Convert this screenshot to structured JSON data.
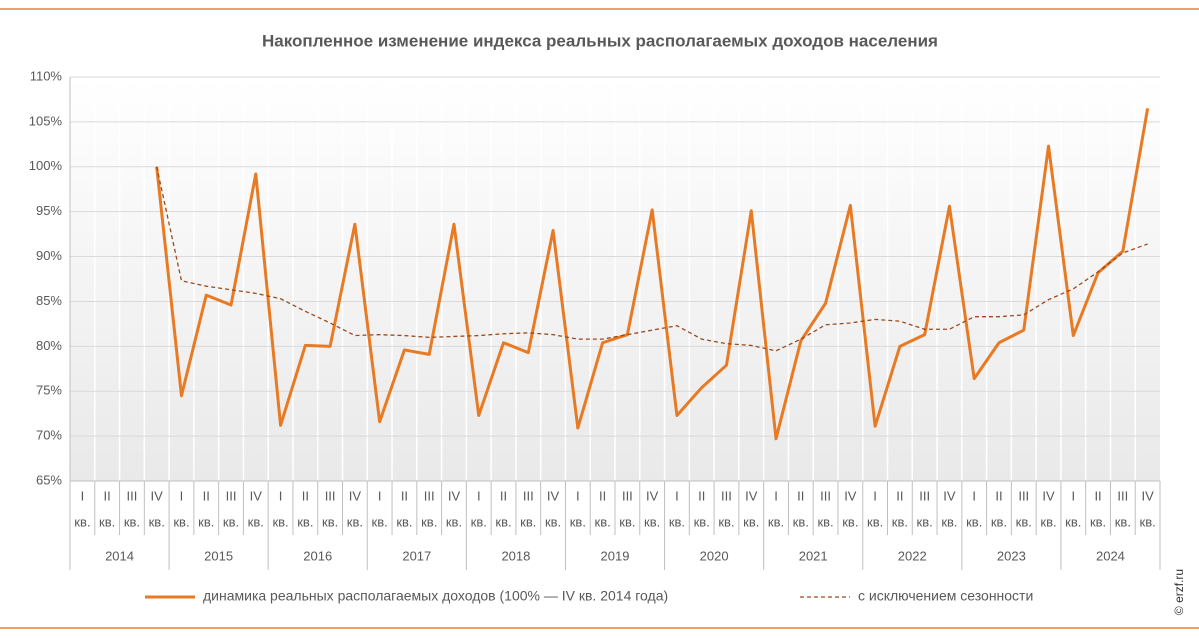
{
  "chart_data": {
    "type": "line",
    "title": "Накопленное изменение индекса реальных располагаемых доходов населения",
    "categories": [
      "I",
      "II",
      "III",
      "IV",
      "I",
      "II",
      "III",
      "IV",
      "I",
      "II",
      "III",
      "IV",
      "I",
      "II",
      "III",
      "IV",
      "I",
      "II",
      "III",
      "IV",
      "I",
      "II",
      "III",
      "IV",
      "I",
      "II",
      "III",
      "IV",
      "I",
      "II",
      "III",
      "IV",
      "I",
      "II",
      "III",
      "IV",
      "I",
      "II",
      "III",
      "IV",
      "I",
      "II",
      "III",
      "IV"
    ],
    "quarter_suffix": "кв.",
    "years": [
      "2014",
      "2015",
      "2016",
      "2017",
      "2018",
      "2019",
      "2020",
      "2021",
      "2022",
      "2023",
      "2024"
    ],
    "series": [
      {
        "name": "динамика реальных располагаемых доходов (100% — IV кв. 2014 года)",
        "color": "#e87a24",
        "style": "solid",
        "values": [
          null,
          null,
          null,
          100,
          74.5,
          85.7,
          84.6,
          99.2,
          71.2,
          80.1,
          80.0,
          93.6,
          71.6,
          79.6,
          79.1,
          93.6,
          72.3,
          80.4,
          79.3,
          92.9,
          70.9,
          80.4,
          81.3,
          95.2,
          72.3,
          75.4,
          77.9,
          95.1,
          69.7,
          80.6,
          84.8,
          95.7,
          71.1,
          80.0,
          81.3,
          95.6,
          76.4,
          80.4,
          81.8,
          102.3,
          81.2,
          88.2,
          90.6,
          106.5
        ]
      },
      {
        "name": "с исключением сезонности",
        "color": "#9a4a1c",
        "style": "dashed",
        "values": [
          null,
          null,
          null,
          100,
          87.3,
          86.7,
          86.3,
          85.9,
          85.3,
          83.9,
          82.6,
          81.2,
          81.3,
          81.2,
          81.0,
          81.1,
          81.2,
          81.4,
          81.5,
          81.3,
          80.8,
          80.8,
          81.3,
          81.8,
          82.3,
          80.8,
          80.3,
          80.1,
          79.5,
          80.8,
          82.4,
          82.6,
          83.0,
          82.8,
          81.9,
          81.9,
          83.3,
          83.3,
          83.5,
          85.2,
          86.4,
          88.3,
          90.4,
          91.4
        ]
      }
    ],
    "ylim": [
      65,
      110
    ],
    "yticks": [
      {
        "value": 65,
        "label": "65%"
      },
      {
        "value": 70,
        "label": "70%"
      },
      {
        "value": 75,
        "label": "75%"
      },
      {
        "value": 80,
        "label": "80%"
      },
      {
        "value": 85,
        "label": "85%"
      },
      {
        "value": 90,
        "label": "90%"
      },
      {
        "value": 95,
        "label": "95%"
      },
      {
        "value": 100,
        "label": "100%"
      },
      {
        "value": 105,
        "label": "105%"
      },
      {
        "value": 110,
        "label": "110%"
      }
    ],
    "grid": true,
    "watermark": "© erzf.ru"
  }
}
